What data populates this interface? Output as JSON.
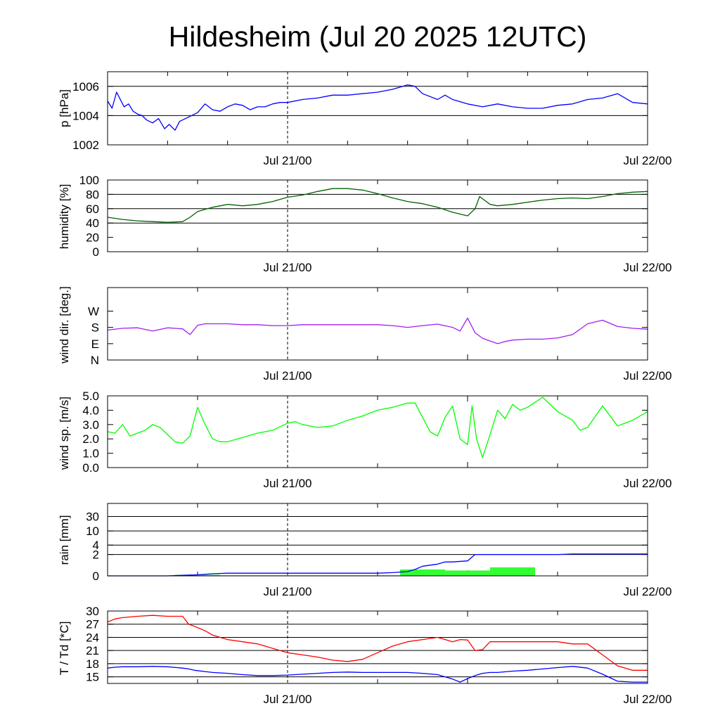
{
  "title": "Hildesheim (Jul 20 2025 12UTC)",
  "time_labels": [
    "Jul 21/00",
    "Jul 22/00"
  ],
  "colors": {
    "pressure": "#0000ff",
    "humidity": "#006400",
    "wind_dir": "#a020f0",
    "wind_speed": "#00ff00",
    "rain_bars": "#33ff33",
    "rain_cumulative": "#0000ff",
    "temperature": "#ff0000",
    "dewpoint": "#0000ff"
  },
  "chart_data": [
    {
      "type": "line",
      "ylabel": "p [hPa]",
      "x_unit": "hours since Jul 20 12UTC",
      "xlim": [
        0,
        36
      ],
      "ylim": [
        1002,
        1007
      ],
      "yticks": [
        1002,
        1004,
        1006
      ],
      "ytick_labels": [
        "1002",
        "1004",
        "1006"
      ],
      "grid": [
        1004,
        1006
      ],
      "x": [
        0,
        0.3,
        0.6,
        1.1,
        1.4,
        1.7,
        2.0,
        2.3,
        2.6,
        3.0,
        3.4,
        3.8,
        4.1,
        4.5,
        4.8,
        5.2,
        5.6,
        6.0,
        6.5,
        7.0,
        7.5,
        8.0,
        8.5,
        9.0,
        9.5,
        10.0,
        10.5,
        11.0,
        11.5,
        12.0,
        13.0,
        14.0,
        15.0,
        16.0,
        17.0,
        18.0,
        19.0,
        20.0,
        20.5,
        21.0,
        22.0,
        22.5,
        23.0,
        24.0,
        25.0,
        26.0,
        27.0,
        28.0,
        29.0,
        30.0,
        31.0,
        32.0,
        33.0,
        34.0,
        35.0,
        36.0
      ],
      "series": [
        {
          "values": [
            1005.0,
            1004.5,
            1005.6,
            1004.6,
            1004.8,
            1004.3,
            1004.1,
            1004.0,
            1003.7,
            1003.5,
            1003.8,
            1003.1,
            1003.4,
            1003.0,
            1003.6,
            1003.8,
            1004.0,
            1004.2,
            1004.8,
            1004.4,
            1004.3,
            1004.6,
            1004.8,
            1004.7,
            1004.4,
            1004.6,
            1004.6,
            1004.8,
            1004.9,
            1004.9,
            1005.1,
            1005.2,
            1005.4,
            1005.4,
            1005.5,
            1005.6,
            1005.8,
            1006.1,
            1006.0,
            1005.5,
            1005.1,
            1005.4,
            1005.1,
            1004.8,
            1004.6,
            1004.8,
            1004.6,
            1004.5,
            1004.5,
            1004.7,
            1004.8,
            1005.1,
            1005.2,
            1005.5,
            1004.9,
            1004.8
          ]
        }
      ]
    },
    {
      "type": "line",
      "ylabel": "humidity [%]",
      "x_unit": "hours since Jul 20 12UTC",
      "xlim": [
        0,
        36
      ],
      "ylim": [
        0,
        100
      ],
      "yticks": [
        0,
        20,
        40,
        60,
        80,
        100
      ],
      "ytick_labels": [
        "0",
        "20",
        "40",
        "60",
        "80",
        "100"
      ],
      "grid": [
        40,
        60,
        80
      ],
      "x": [
        0,
        1,
        2,
        3,
        4,
        5,
        5.5,
        6,
        7,
        8,
        9,
        10,
        11,
        12,
        13,
        14,
        15,
        16,
        17,
        18,
        19,
        20,
        21,
        22,
        23,
        24,
        24.5,
        24.8,
        25.5,
        26,
        27,
        28,
        29,
        30,
        31,
        32,
        33,
        34,
        35,
        36
      ],
      "series": [
        {
          "values": [
            48,
            45,
            43,
            42,
            41,
            42,
            48,
            56,
            62,
            66,
            64,
            66,
            70,
            76,
            79,
            84,
            88,
            88,
            86,
            81,
            75,
            70,
            67,
            62,
            55,
            50,
            60,
            77,
            66,
            64,
            66,
            69,
            72,
            74,
            75,
            74,
            77,
            81,
            83,
            84
          ]
        }
      ]
    },
    {
      "type": "line",
      "ylabel": "wind dir. [deg.]",
      "x_unit": "hours since Jul 20 12UTC",
      "xlim": [
        0,
        36
      ],
      "ylim": [
        0,
        400
      ],
      "yticks": [
        0,
        90,
        180,
        270
      ],
      "ytick_labels": [
        "N",
        "E",
        "S",
        "W"
      ],
      "grid": [],
      "x": [
        0,
        1,
        2,
        3,
        4,
        5,
        5.5,
        6,
        6.5,
        7,
        8,
        9,
        10,
        11,
        12,
        13,
        14,
        15,
        16,
        17,
        18,
        19,
        20,
        21,
        22,
        23,
        23.5,
        24,
        24.5,
        25,
        25.5,
        26,
        26.5,
        27,
        28,
        29,
        30,
        31,
        32,
        33,
        34,
        35,
        36
      ],
      "series": [
        {
          "values": [
            165,
            175,
            178,
            160,
            178,
            172,
            140,
            192,
            200,
            200,
            200,
            195,
            195,
            190,
            190,
            195,
            195,
            195,
            195,
            195,
            195,
            190,
            180,
            190,
            198,
            180,
            160,
            232,
            150,
            120,
            105,
            90,
            102,
            110,
            115,
            115,
            122,
            140,
            200,
            220,
            185,
            175,
            170
          ]
        }
      ]
    },
    {
      "type": "line",
      "ylabel": "wind sp. [m/s]",
      "x_unit": "hours since Jul 20 12UTC",
      "xlim": [
        0,
        36
      ],
      "ylim": [
        0,
        5
      ],
      "yticks": [
        0,
        1,
        2,
        3,
        4,
        5
      ],
      "ytick_labels": [
        "0.0",
        "1.0",
        "2.0",
        "3.0",
        "4.0",
        "5.0"
      ],
      "grid": [],
      "x": [
        0,
        0.5,
        1,
        1.5,
        2,
        2.5,
        3,
        3.5,
        4,
        4.5,
        5,
        5.5,
        6,
        6.5,
        7,
        7.5,
        8,
        9,
        10,
        11,
        12,
        12.5,
        13,
        14,
        15,
        16,
        17,
        18,
        19,
        20,
        20.5,
        21,
        21.5,
        22,
        22.5,
        23,
        23.5,
        24,
        24.3,
        24.6,
        25,
        25.5,
        26,
        26.5,
        27,
        27.5,
        28,
        29,
        30,
        31,
        31.5,
        32,
        33,
        34,
        35,
        36
      ],
      "series": [
        {
          "values": [
            2.5,
            2.4,
            3.0,
            2.2,
            2.4,
            2.6,
            3.0,
            2.8,
            2.3,
            1.8,
            1.7,
            2.2,
            4.2,
            3.0,
            2.0,
            1.8,
            1.8,
            2.1,
            2.4,
            2.6,
            3.1,
            3.2,
            3.0,
            2.8,
            2.9,
            3.3,
            3.6,
            4.0,
            4.2,
            4.5,
            4.5,
            3.5,
            2.5,
            2.2,
            3.5,
            4.3,
            2.0,
            1.6,
            4.3,
            2.0,
            0.7,
            2.3,
            4.0,
            3.4,
            4.4,
            4.0,
            4.2,
            4.9,
            3.9,
            3.3,
            2.6,
            2.8,
            4.3,
            2.9,
            3.3,
            3.9
          ]
        }
      ]
    },
    {
      "type": "bar",
      "ylabel": "rain [mm]",
      "x_unit": "hours since Jul 20 12UTC",
      "xlim": [
        0,
        36
      ],
      "ylim": [
        0,
        30
      ],
      "y_scale": "stretched (non-linear)",
      "yticks": [
        0,
        2,
        4,
        10,
        30
      ],
      "ytick_labels": [
        "0",
        "2",
        "4",
        "10",
        "30"
      ],
      "grid": [
        2,
        4,
        10,
        30
      ],
      "bars": {
        "name": "rain per interval",
        "x_start": [
          4.5,
          7.5,
          19.5,
          22.5,
          25.5
        ],
        "x_end": [
          7.5,
          19.5,
          22.5,
          25.5,
          28.5
        ],
        "values": [
          0.1,
          0.05,
          0.6,
          0.5,
          0.8
        ]
      },
      "cumulative": {
        "name": "accumulated rain",
        "x": [
          0,
          4,
          5,
          6,
          7,
          8,
          10,
          12,
          14,
          16,
          18,
          19,
          20,
          20.5,
          21,
          22,
          22.5,
          23,
          24,
          24.5,
          25,
          26,
          27,
          28,
          29,
          30,
          31,
          32,
          33,
          34,
          35,
          36
        ],
        "values": [
          0,
          0,
          0.05,
          0.1,
          0.2,
          0.25,
          0.25,
          0.25,
          0.25,
          0.25,
          0.25,
          0.3,
          0.4,
          0.6,
          0.9,
          1.1,
          1.3,
          1.3,
          1.4,
          2.0,
          2.0,
          2.0,
          2.0,
          2.0,
          2.0,
          2.0,
          2.1,
          2.1,
          2.1,
          2.1,
          2.1,
          2.1
        ]
      }
    },
    {
      "type": "line",
      "ylabel": "T / Td [*C]",
      "x_unit": "hours since Jul 20 12UTC",
      "xlim": [
        0,
        36
      ],
      "ylim": [
        13.5,
        30
      ],
      "yticks": [
        15,
        18,
        21,
        24,
        27,
        30
      ],
      "ytick_labels": [
        "15",
        "18",
        "21",
        "24",
        "27",
        "30"
      ],
      "grid": [
        15,
        18,
        21,
        24,
        27
      ],
      "x": [
        0,
        0.5,
        1,
        2,
        3,
        4,
        5,
        5.4,
        5.8,
        6.5,
        7,
        8,
        9,
        10,
        11,
        12,
        13,
        14,
        15,
        16,
        17,
        18,
        19,
        20,
        21,
        22,
        23,
        23.5,
        24,
        24.5,
        25,
        25.5,
        26,
        27,
        28,
        29,
        30,
        31,
        32,
        33,
        34,
        35,
        36
      ],
      "series": [
        {
          "values": [
            27.5,
            28.2,
            28.5,
            28.8,
            29.0,
            28.8,
            28.8,
            27.0,
            26.5,
            25.5,
            24.5,
            23.5,
            23.0,
            22.5,
            21.5,
            20.5,
            20.0,
            19.5,
            18.8,
            18.5,
            19.0,
            20.5,
            22.0,
            23.0,
            23.5,
            24.0,
            23.0,
            23.5,
            23.4,
            21.0,
            21.2,
            23.0,
            23.0,
            23.0,
            23.0,
            23.0,
            23.0,
            22.5,
            22.5,
            20.0,
            17.5,
            16.5,
            16.5
          ]
        },
        {
          "values": [
            17.0,
            17.2,
            17.3,
            17.3,
            17.4,
            17.3,
            17.0,
            16.8,
            16.5,
            16.2,
            16.0,
            15.8,
            15.5,
            15.3,
            15.3,
            15.4,
            15.6,
            15.8,
            16.0,
            16.1,
            16.0,
            16.0,
            16.0,
            16.0,
            15.8,
            15.5,
            14.5,
            13.8,
            14.6,
            15.3,
            15.8,
            16.0,
            16.0,
            16.3,
            16.5,
            16.8,
            17.1,
            17.4,
            17.0,
            15.6,
            14.0,
            13.8,
            13.8
          ]
        }
      ]
    }
  ]
}
